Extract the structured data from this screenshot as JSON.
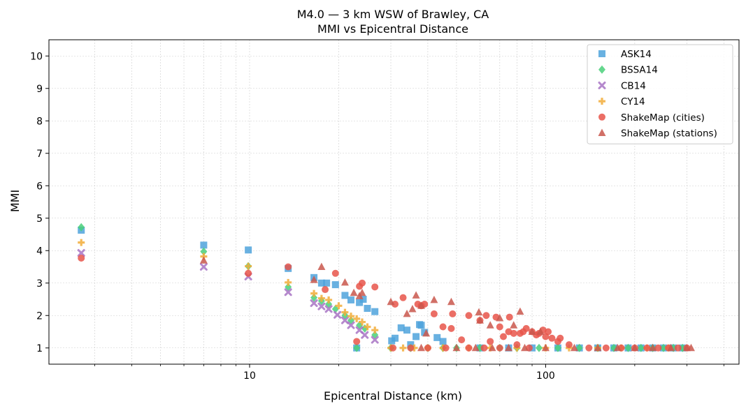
{
  "chart_data": {
    "type": "scatter",
    "title": "M4.0 — 3 km WSW of Brawley, CA",
    "subtitle": "MMI vs Epicentral Distance",
    "xlabel": "Epicentral Distance (km)",
    "ylabel": "MMI",
    "xscale": "log",
    "xlim": [
      2.1,
      450
    ],
    "ylim": [
      0.5,
      10.5
    ],
    "xticks": [
      10,
      100
    ],
    "xtick_labels": [
      "10",
      "100"
    ],
    "yticks": [
      1,
      2,
      3,
      4,
      5,
      6,
      7,
      8,
      9,
      10
    ],
    "ytick_labels": [
      "1",
      "2",
      "3",
      "4",
      "5",
      "6",
      "7",
      "8",
      "9",
      "10"
    ],
    "grid": true,
    "legend_position": "top-right",
    "series": [
      {
        "name": "ASK14",
        "color": "#4fa3dc",
        "marker": "square",
        "points": [
          [
            2.7,
            4.63
          ],
          [
            7.0,
            4.17
          ],
          [
            9.9,
            4.02
          ],
          [
            13.5,
            3.45
          ],
          [
            16.5,
            3.17
          ],
          [
            17.5,
            3.0
          ],
          [
            18.2,
            3.0
          ],
          [
            19.5,
            2.95
          ],
          [
            21.0,
            2.62
          ],
          [
            22.0,
            2.48
          ],
          [
            23.5,
            2.4
          ],
          [
            24.2,
            2.5
          ],
          [
            25.0,
            2.22
          ],
          [
            26.5,
            2.12
          ],
          [
            30.2,
            1.22
          ],
          [
            31.0,
            1.3
          ],
          [
            32.5,
            1.62
          ],
          [
            34.0,
            1.55
          ],
          [
            35.0,
            1.1
          ],
          [
            36.5,
            1.35
          ],
          [
            37.5,
            1.72
          ],
          [
            38.0,
            1.7
          ],
          [
            39.0,
            1.48
          ],
          [
            43.0,
            1.32
          ],
          [
            45.0,
            1.2
          ],
          [
            23.0,
            1.0
          ],
          [
            60.0,
            1.0
          ],
          [
            75.0,
            1.0
          ],
          [
            90.0,
            1.0
          ],
          [
            110.0,
            1.0
          ],
          [
            130.0,
            1.0
          ],
          [
            150.0,
            1.0
          ],
          [
            170.0,
            1.0
          ],
          [
            190.0,
            1.0
          ],
          [
            210.0,
            1.0
          ],
          [
            230.0,
            1.0
          ],
          [
            250.0,
            1.0
          ],
          [
            270.0,
            1.0
          ],
          [
            290.0,
            1.0
          ]
        ]
      },
      {
        "name": "BSSA14",
        "color": "#4ad07a",
        "marker": "diamond",
        "points": [
          [
            2.7,
            4.72
          ],
          [
            7.0,
            3.97
          ],
          [
            9.9,
            3.52
          ],
          [
            13.5,
            2.88
          ],
          [
            16.5,
            2.55
          ],
          [
            17.5,
            2.45
          ],
          [
            18.5,
            2.35
          ],
          [
            19.5,
            2.2
          ],
          [
            21.0,
            2.0
          ],
          [
            22.0,
            1.85
          ],
          [
            23.5,
            1.7
          ],
          [
            24.5,
            1.6
          ],
          [
            26.5,
            1.4
          ],
          [
            23.0,
            1.0
          ],
          [
            30.0,
            1.0
          ],
          [
            35.0,
            1.0
          ],
          [
            40.0,
            1.0
          ],
          [
            45.0,
            1.0
          ],
          [
            50.0,
            1.0
          ],
          [
            60.0,
            1.0
          ],
          [
            70.0,
            1.0
          ],
          [
            80.0,
            1.0
          ],
          [
            95.0,
            1.0
          ],
          [
            110.0,
            1.0
          ],
          [
            130.0,
            1.0
          ],
          [
            150.0,
            1.0
          ],
          [
            170.0,
            1.0
          ],
          [
            190.0,
            1.0
          ],
          [
            210.0,
            1.0
          ],
          [
            230.0,
            1.0
          ],
          [
            250.0,
            1.0
          ],
          [
            270.0,
            1.0
          ],
          [
            290.0,
            1.0
          ]
        ]
      },
      {
        "name": "CB14",
        "color": "#a874c4",
        "marker": "x",
        "points": [
          [
            2.7,
            3.93
          ],
          [
            7.0,
            3.5
          ],
          [
            9.9,
            3.2
          ],
          [
            13.5,
            2.72
          ],
          [
            16.5,
            2.38
          ],
          [
            17.5,
            2.28
          ],
          [
            18.5,
            2.2
          ],
          [
            19.8,
            2.02
          ],
          [
            21.0,
            1.85
          ],
          [
            22.0,
            1.7
          ],
          [
            23.5,
            1.55
          ],
          [
            24.5,
            1.4
          ],
          [
            26.5,
            1.25
          ]
        ]
      },
      {
        "name": "CY14",
        "color": "#f2ad3a",
        "marker": "plus",
        "points": [
          [
            2.7,
            4.25
          ],
          [
            7.0,
            3.82
          ],
          [
            9.9,
            3.52
          ],
          [
            13.5,
            3.02
          ],
          [
            16.5,
            2.68
          ],
          [
            17.5,
            2.53
          ],
          [
            18.5,
            2.48
          ],
          [
            20.0,
            2.3
          ],
          [
            21.0,
            2.1
          ],
          [
            22.0,
            1.98
          ],
          [
            23.0,
            1.9
          ],
          [
            24.0,
            1.8
          ],
          [
            25.0,
            1.65
          ],
          [
            26.5,
            1.55
          ],
          [
            30.0,
            1.0
          ],
          [
            33.0,
            1.0
          ],
          [
            36.0,
            1.0
          ],
          [
            40.0,
            1.0
          ],
          [
            45.0,
            1.0
          ],
          [
            55.0,
            1.0
          ],
          [
            65.0,
            1.0
          ],
          [
            80.0,
            1.0
          ],
          [
            100.0,
            1.0
          ],
          [
            120.0,
            1.0
          ],
          [
            150.0,
            1.0
          ],
          [
            180.0,
            1.0
          ],
          [
            220.0,
            1.0
          ],
          [
            260.0,
            1.0
          ]
        ]
      },
      {
        "name": "ShakeMap (cities)",
        "color": "#e8554a",
        "marker": "circle",
        "points": [
          [
            2.7,
            3.77
          ],
          [
            9.9,
            3.3
          ],
          [
            13.5,
            3.5
          ],
          [
            18.0,
            2.8
          ],
          [
            19.5,
            3.3
          ],
          [
            23.0,
            1.2
          ],
          [
            23.5,
            2.9
          ],
          [
            24.0,
            3.0
          ],
          [
            26.5,
            2.88
          ],
          [
            31.0,
            2.35
          ],
          [
            33.0,
            2.55
          ],
          [
            37.0,
            2.35
          ],
          [
            38.0,
            2.3
          ],
          [
            39.0,
            2.35
          ],
          [
            42.0,
            2.05
          ],
          [
            45.0,
            1.65
          ],
          [
            48.0,
            1.6
          ],
          [
            48.5,
            2.05
          ],
          [
            52.0,
            1.25
          ],
          [
            55.0,
            2.0
          ],
          [
            60.0,
            1.85
          ],
          [
            63.0,
            2.0
          ],
          [
            65.0,
            1.2
          ],
          [
            68.0,
            1.95
          ],
          [
            70.0,
            1.65
          ],
          [
            72.0,
            1.35
          ],
          [
            75.0,
            1.5
          ],
          [
            75.5,
            1.95
          ],
          [
            78.0,
            1.45
          ],
          [
            80.0,
            1.1
          ],
          [
            82.0,
            1.45
          ],
          [
            84.0,
            1.5
          ],
          [
            86.0,
            1.6
          ],
          [
            90.0,
            1.5
          ],
          [
            93.0,
            1.4
          ],
          [
            95.0,
            1.45
          ],
          [
            98.0,
            1.55
          ],
          [
            100.0,
            1.35
          ],
          [
            102.0,
            1.5
          ],
          [
            105.0,
            1.3
          ],
          [
            110.0,
            1.2
          ],
          [
            112.0,
            1.3
          ],
          [
            120.0,
            1.1
          ],
          [
            140.0,
            1.0
          ],
          [
            160.0,
            1.0
          ],
          [
            180.0,
            1.0
          ],
          [
            200.0,
            1.0
          ],
          [
            220.0,
            1.0
          ],
          [
            240.0,
            1.0
          ],
          [
            260.0,
            1.0
          ],
          [
            280.0,
            1.0
          ],
          [
            300.0,
            1.0
          ],
          [
            30.5,
            1.0
          ],
          [
            35.0,
            1.0
          ],
          [
            40.0,
            1.0
          ],
          [
            46.0,
            1.0
          ],
          [
            55.0,
            1.0
          ],
          [
            62.0,
            1.0
          ],
          [
            70.0,
            1.0
          ],
          [
            88.0,
            1.0
          ]
        ]
      },
      {
        "name": "ShakeMap (stations)",
        "color": "#c9574c",
        "marker": "triangle",
        "points": [
          [
            7.0,
            3.7
          ],
          [
            16.5,
            3.1
          ],
          [
            17.5,
            3.5
          ],
          [
            21.0,
            3.02
          ],
          [
            22.5,
            2.7
          ],
          [
            23.5,
            2.6
          ],
          [
            24.0,
            2.7
          ],
          [
            30.0,
            2.42
          ],
          [
            34.0,
            2.05
          ],
          [
            35.5,
            2.2
          ],
          [
            36.5,
            2.62
          ],
          [
            38.0,
            2.3
          ],
          [
            39.5,
            1.45
          ],
          [
            42.0,
            2.48
          ],
          [
            48.0,
            2.42
          ],
          [
            59.5,
            2.1
          ],
          [
            60.0,
            1.85
          ],
          [
            65.0,
            1.7
          ],
          [
            70.0,
            1.92
          ],
          [
            78.0,
            1.7
          ],
          [
            82.0,
            2.12
          ],
          [
            90.0,
            1.5
          ],
          [
            96.0,
            1.5
          ],
          [
            38.0,
            1.0
          ],
          [
            50.0,
            1.0
          ],
          [
            58.0,
            1.0
          ],
          [
            66.0,
            1.0
          ],
          [
            75.0,
            1.0
          ],
          [
            85.0,
            1.0
          ],
          [
            100.0,
            1.0
          ],
          [
            125.0,
            1.0
          ],
          [
            150.0,
            1.0
          ],
          [
            175.0,
            1.0
          ],
          [
            200.0,
            1.0
          ],
          [
            230.0,
            1.0
          ],
          [
            265.0,
            1.0
          ],
          [
            300.0,
            1.0
          ],
          [
            310.0,
            1.0
          ]
        ]
      }
    ]
  }
}
